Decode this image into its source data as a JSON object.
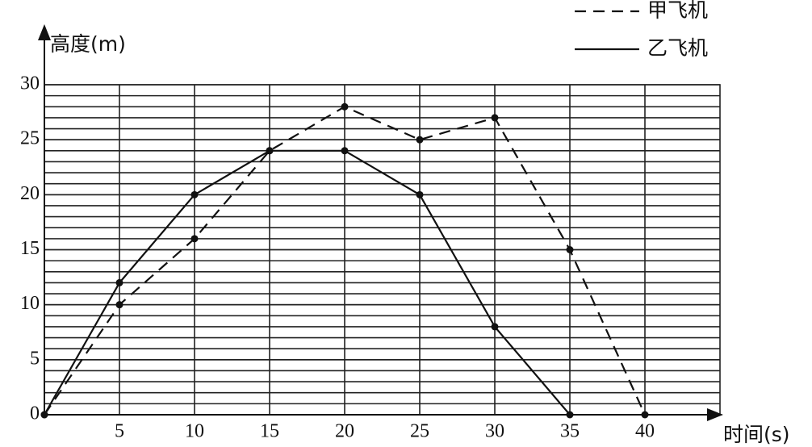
{
  "chart_data": {
    "type": "line",
    "x_label": "时间(s)",
    "y_label": "高度(m)",
    "x": [
      0,
      5,
      10,
      15,
      20,
      25,
      30,
      35,
      40
    ],
    "series": [
      {
        "name": "甲飞机",
        "color": "#111111",
        "dash": true,
        "values": [
          0,
          10,
          16,
          24,
          28,
          25,
          27,
          15,
          0
        ]
      },
      {
        "name": "乙飞机",
        "color": "#111111",
        "dash": false,
        "values": [
          0,
          12,
          20,
          24,
          24,
          20,
          8,
          0,
          null
        ]
      }
    ],
    "xlim": [
      0,
      45
    ],
    "ylim": [
      0,
      30
    ],
    "xticks": [
      5,
      10,
      15,
      20,
      25,
      30,
      35,
      40
    ],
    "yticks": [
      0,
      5,
      10,
      15,
      20,
      25,
      30
    ],
    "y_minor_step": 1,
    "grid": true,
    "legend": "top-right"
  }
}
